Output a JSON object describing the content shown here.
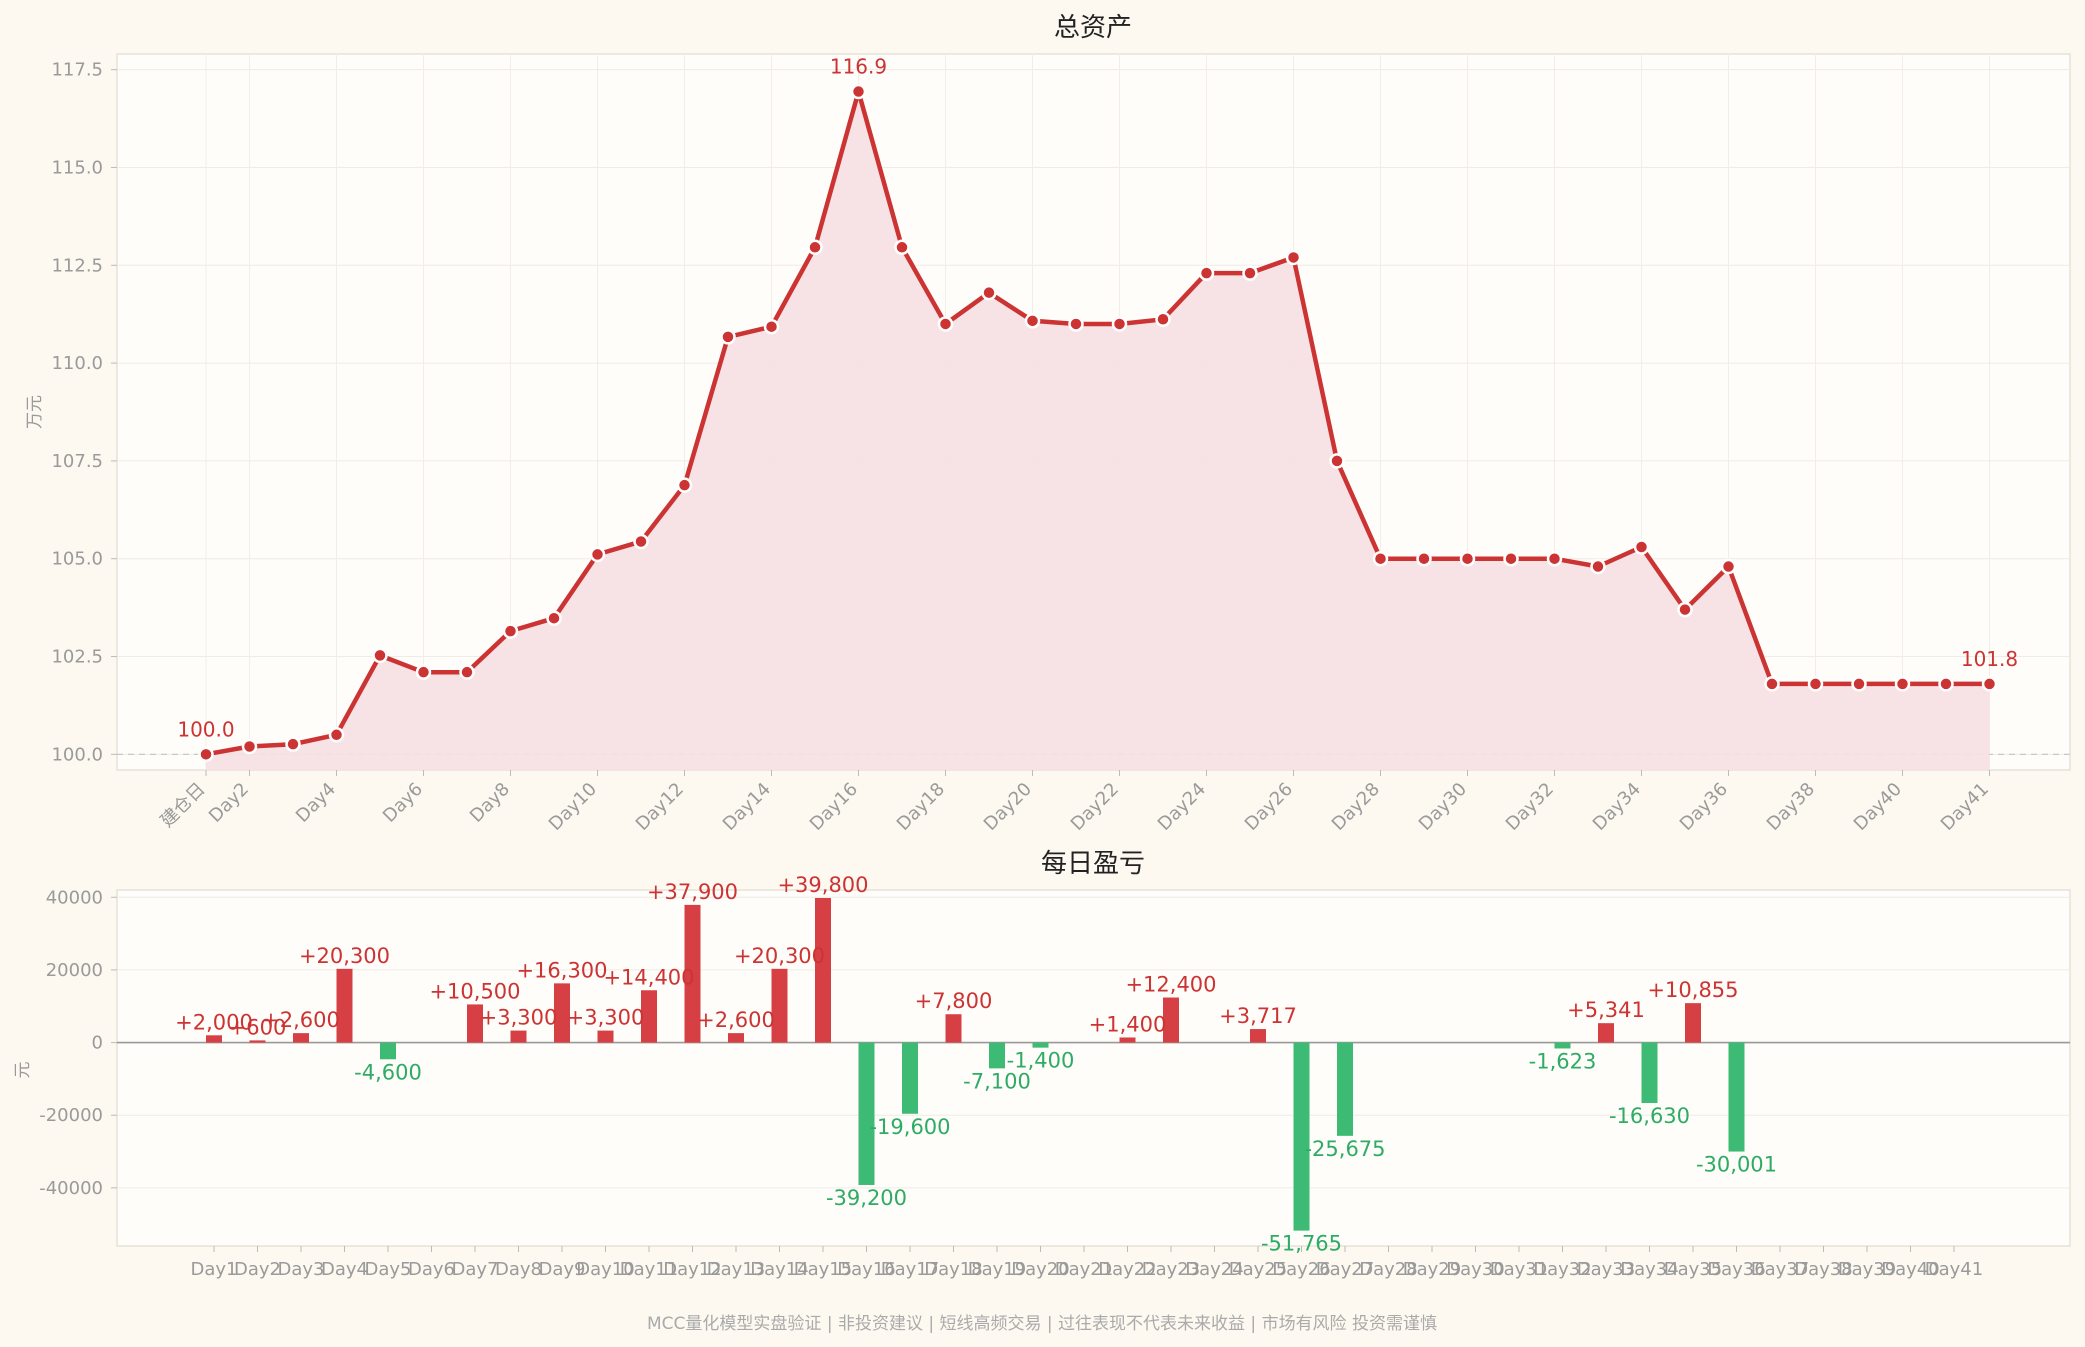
{
  "footer": "MCC量化模型实盘验证 | 非投资建议 | 短线高频交易 | 过往表现不代表未来收益 | 市场有风险 投资需谨慎",
  "colors": {
    "up": "#d64045",
    "down": "#3dbb74",
    "line": "#cc3333",
    "fill": "#f6e0e2",
    "background": "#fdf9f1"
  },
  "chart_data": [
    {
      "type": "area",
      "title": "总资产",
      "ylabel": "万元",
      "xlabel": "",
      "ylim": [
        99.6,
        117.9
      ],
      "yticks": [
        "100.0",
        "102.5",
        "105.0",
        "107.5",
        "110.0",
        "112.5",
        "115.0",
        "117.5"
      ],
      "x_tick_labels": [
        "建仓日",
        "Day2",
        "Day4",
        "Day6",
        "Day8",
        "Day10",
        "Day12",
        "Day14",
        "Day16",
        "Day18",
        "Day20",
        "Day22",
        "Day24",
        "Day26",
        "Day28",
        "Day30",
        "Day32",
        "Day34",
        "Day36",
        "Day38",
        "Day40",
        "Day41"
      ],
      "annotations": [
        "100.0",
        "116.9",
        "101.8"
      ],
      "baseline": 100.0,
      "grid": true,
      "values": [
        100.0,
        100.2,
        100.26,
        100.5,
        102.53,
        102.1,
        102.1,
        103.15,
        103.48,
        105.11,
        105.44,
        106.88,
        110.67,
        110.93,
        112.96,
        116.94,
        112.96,
        111.0,
        111.8,
        111.08,
        111.0,
        111.0,
        111.12,
        112.3,
        112.3,
        112.7,
        107.5,
        105.0,
        105.0,
        105.0,
        105.0,
        105.0,
        104.8,
        105.3,
        103.7,
        104.8,
        101.8,
        101.8,
        101.8,
        101.8,
        101.8,
        101.8
      ]
    },
    {
      "type": "bar",
      "title": "每日盈亏",
      "ylabel": "元",
      "xlabel": "",
      "ylim": [
        -56000,
        42000
      ],
      "yticks": [
        "40000",
        "20000",
        "0",
        "-20000",
        "-40000"
      ],
      "categories": [
        "Day1",
        "Day2",
        "Day3",
        "Day4",
        "Day5",
        "Day6",
        "Day7",
        "Day8",
        "Day9",
        "Day10",
        "Day11",
        "Day12",
        "Day13",
        "Day14",
        "Day15",
        "Day16",
        "Day17",
        "Day18",
        "Day19",
        "Day20",
        "Day21",
        "Day22",
        "Day23",
        "Day24",
        "Day25",
        "Day26",
        "Day27",
        "Day28",
        "Day29",
        "Day30",
        "Day31",
        "Day32",
        "Day33",
        "Day34",
        "Day35",
        "Day36",
        "Day37",
        "Day38",
        "Day39",
        "Day40",
        "Day41"
      ],
      "values": [
        2000,
        600,
        2600,
        20300,
        -4600,
        0,
        10500,
        3300,
        16300,
        3300,
        14400,
        37900,
        2600,
        20300,
        39800,
        -39200,
        -19600,
        7800,
        -7100,
        -1400,
        0,
        1400,
        12400,
        0,
        3717,
        -51765,
        -25675,
        0,
        0,
        0,
        0,
        -1623,
        5341,
        -16630,
        10855,
        -30001,
        0,
        0,
        0,
        0,
        0
      ],
      "labels": [
        "+2,000",
        "+600",
        "+2,600",
        "+20,300",
        "-4,600",
        "",
        "+10,500",
        "+3,300",
        "+16,300",
        "+3,300",
        "+14,400",
        "+37,900",
        "+2,600",
        "+20,300",
        "+39,800",
        "-39,200",
        "-19,600",
        "+7,800",
        "-7,100",
        "-1,400",
        "",
        "+1,400",
        "+12,400",
        "",
        "+3,717",
        "-51,765",
        "-25,675",
        "",
        "",
        "",
        "",
        "-1,623",
        "+5,341",
        "-16,630",
        "+10,855",
        "-30,001",
        "",
        "",
        "",
        "",
        ""
      ],
      "grid": true
    }
  ]
}
